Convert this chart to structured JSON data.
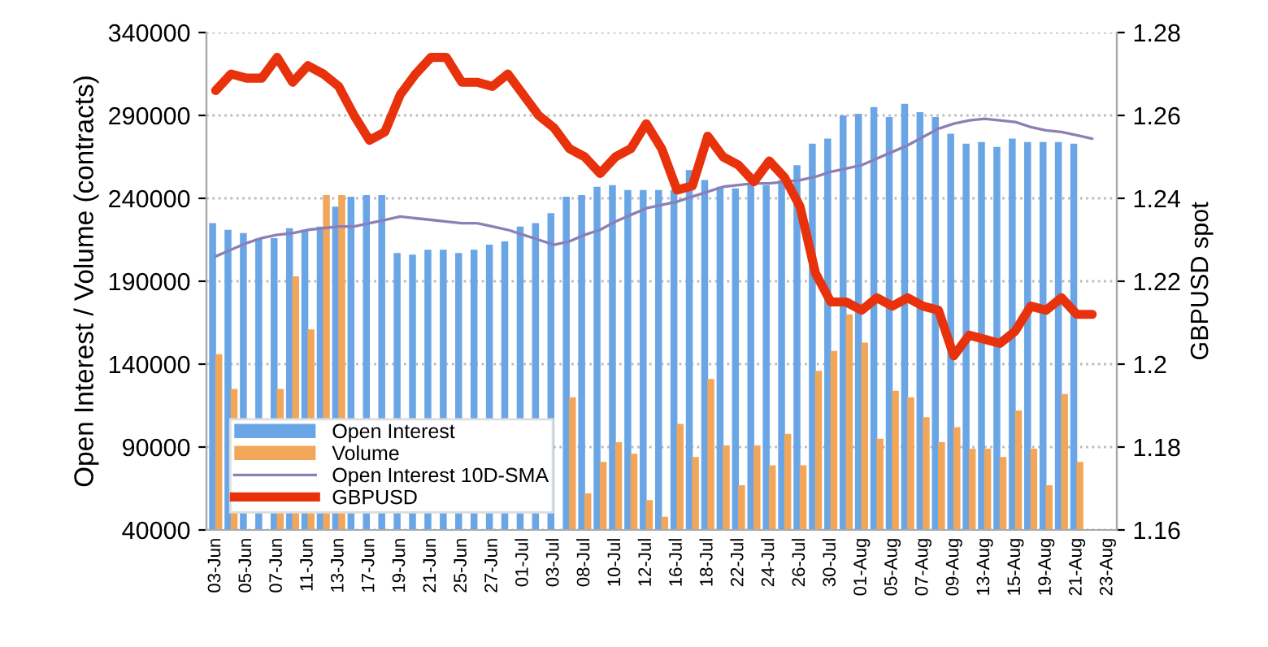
{
  "chart_data": {
    "type": "bar",
    "ylabel": "Open Interest / Volume (contracts)",
    "y2label": "GBPUSD spot",
    "categories": [
      "03-Jun",
      null,
      "05-Jun",
      null,
      "07-Jun",
      null,
      "11-Jun",
      null,
      "13-Jun",
      null,
      "17-Jun",
      null,
      "19-Jun",
      null,
      "21-Jun",
      null,
      "25-Jun",
      null,
      "27-Jun",
      null,
      "01-Jul",
      null,
      "03-Jul",
      null,
      "08-Jul",
      null,
      "10-Jul",
      null,
      "12-Jul",
      null,
      "16-Jul",
      null,
      "18-Jul",
      null,
      "22-Jul",
      null,
      "24-Jul",
      null,
      "26-Jul",
      null,
      "30-Jul",
      null,
      "01-Aug",
      null,
      "05-Aug",
      null,
      "07-Aug",
      null,
      "09-Aug",
      null,
      "13-Aug",
      null,
      "15-Aug",
      null,
      "19-Aug",
      null,
      "21-Aug",
      null,
      "23-Aug"
    ],
    "series": [
      {
        "name": "Open Interest",
        "color": "#6aa6e6",
        "values": [
          225000,
          221000,
          219000,
          216000,
          216000,
          222000,
          221000,
          223000,
          235000,
          241000,
          242000,
          242000,
          207000,
          206000,
          209000,
          209000,
          207000,
          209000,
          212000,
          214000,
          223000,
          225000,
          231000,
          241000,
          242000,
          247000,
          248000,
          245000,
          245000,
          245000,
          245000,
          257000,
          251000,
          247000,
          246000,
          248000,
          248000,
          251000,
          260000,
          273000,
          276000,
          290000,
          291000,
          295000,
          289000,
          297000,
          292000,
          289000,
          279000,
          273000,
          274000,
          271000,
          276000,
          274000,
          274000,
          274000,
          273000,
          null,
          null
        ]
      },
      {
        "name": "Volume",
        "color": "#f2a65a",
        "values": [
          146000,
          125000,
          null,
          null,
          125000,
          193000,
          161000,
          242000,
          242000,
          null,
          null,
          null,
          null,
          null,
          null,
          null,
          null,
          null,
          null,
          null,
          null,
          null,
          null,
          120000,
          62000,
          81000,
          93000,
          86000,
          58000,
          48000,
          104000,
          84000,
          131000,
          91000,
          67000,
          91000,
          79000,
          98000,
          79000,
          136000,
          148000,
          170000,
          153000,
          95000,
          124000,
          120000,
          108000,
          93000,
          102000,
          89000,
          89000,
          84000,
          112000,
          89000,
          67000,
          122000,
          81000,
          null,
          null
        ]
      },
      {
        "name": "Open Interest 10D-SMA",
        "type": "line",
        "color": "#8c7fb5",
        "values": [
          205000,
          209000,
          213000,
          216000,
          218000,
          219000,
          221000,
          222000,
          223000,
          223000,
          225000,
          227000,
          229000,
          228000,
          227000,
          226000,
          225000,
          225000,
          223000,
          221000,
          218000,
          215000,
          212000,
          214000,
          218000,
          221000,
          226000,
          230000,
          234000,
          236000,
          238000,
          241000,
          244000,
          247000,
          248000,
          249000,
          249000,
          250000,
          251000,
          253000,
          256000,
          258000,
          260000,
          264000,
          268000,
          272000,
          277000,
          282000,
          285000,
          287000,
          288000,
          287000,
          286000,
          283000,
          281000,
          280000,
          278000,
          276000,
          null
        ]
      },
      {
        "name": "GBPUSD",
        "type": "line",
        "axis": "y2",
        "color": "#e8320c",
        "values": [
          1.266,
          1.27,
          1.269,
          1.269,
          1.274,
          1.268,
          1.272,
          1.27,
          1.267,
          1.26,
          1.254,
          1.256,
          1.265,
          1.27,
          1.274,
          1.274,
          1.268,
          1.268,
          1.267,
          1.27,
          1.265,
          1.26,
          1.257,
          1.252,
          1.25,
          1.246,
          1.25,
          1.252,
          1.258,
          1.252,
          1.242,
          1.243,
          1.255,
          1.25,
          1.248,
          1.244,
          1.249,
          1.245,
          1.238,
          1.222,
          1.215,
          1.215,
          1.213,
          1.216,
          1.214,
          1.216,
          1.214,
          1.213,
          1.202,
          1.207,
          1.206,
          1.205,
          1.208,
          1.214,
          1.213,
          1.216,
          1.212,
          1.212,
          null
        ]
      }
    ],
    "ylim": [
      40000,
      340000
    ],
    "yticks": [
      40000,
      90000,
      140000,
      190000,
      240000,
      290000,
      340000
    ],
    "y2lim": [
      1.16,
      1.28
    ],
    "y2ticks": [
      1.16,
      1.18,
      1.2,
      1.22,
      1.24,
      1.26,
      1.28
    ],
    "grid": "y",
    "legend": "bottom left"
  }
}
